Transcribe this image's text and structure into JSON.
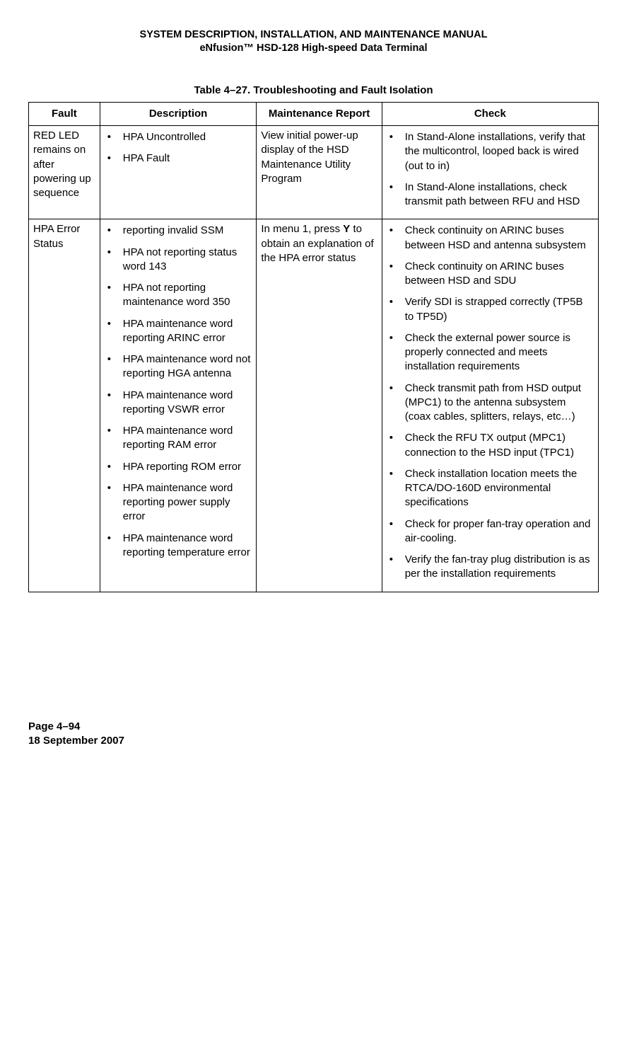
{
  "header": {
    "line1": "SYSTEM DESCRIPTION, INSTALLATION, AND MAINTENANCE MANUAL",
    "line2": "eNfusion™ HSD-128 High-speed Data Terminal"
  },
  "table": {
    "caption": "Table 4–27. Troubleshooting and Fault Isolation",
    "columns": {
      "fault": "Fault",
      "description": "Description",
      "maintenance": "Maintenance Report",
      "check": "Check"
    },
    "rows": [
      {
        "fault": "RED LED remains on after powering up sequence",
        "description": [
          "HPA Uncontrolled",
          "HPA Fault"
        ],
        "maintenance_plain": "View initial power-up display of the HSD Maintenance Utility Program",
        "check": [
          "In Stand-Alone installations, verify that the multicontrol, looped back is wired (out to in)",
          "In Stand-Alone installations, check transmit path between RFU and HSD"
        ]
      },
      {
        "fault": "HPA Error Status",
        "description": [
          "reporting invalid SSM",
          "HPA not reporting status word 143",
          "HPA not reporting maintenance word 350",
          "HPA maintenance word reporting ARINC error",
          "HPA maintenance word not reporting HGA antenna",
          "HPA maintenance word reporting VSWR error",
          "HPA maintenance word reporting RAM error",
          "HPA reporting ROM error",
          "HPA maintenance word reporting power supply error",
          "HPA maintenance word reporting temperature error"
        ],
        "maintenance_pre": "In menu 1, press ",
        "maintenance_bold": "Y",
        "maintenance_post": " to obtain an explanation of the HPA error status",
        "check": [
          "Check continuity on ARINC buses between HSD and antenna subsystem",
          "Check continuity on ARINC buses between HSD and SDU",
          "Verify SDI is strapped correctly (TP5B to TP5D)",
          "Check the external power source is properly connected and meets installation requirements",
          "Check transmit path from HSD output (MPC1) to the antenna subsystem (coax cables, splitters, relays, etc…)",
          "Check the RFU TX output (MPC1) connection to the HSD input (TPC1)",
          "Check installation location meets the RTCA/DO-160D environmental specifications",
          "Check for proper fan-tray operation and air-cooling.",
          "Verify the fan-tray plug distribution is as per the installation requirements"
        ]
      }
    ]
  },
  "footer": {
    "page": "Page 4–94",
    "date": "18 September 2007"
  }
}
